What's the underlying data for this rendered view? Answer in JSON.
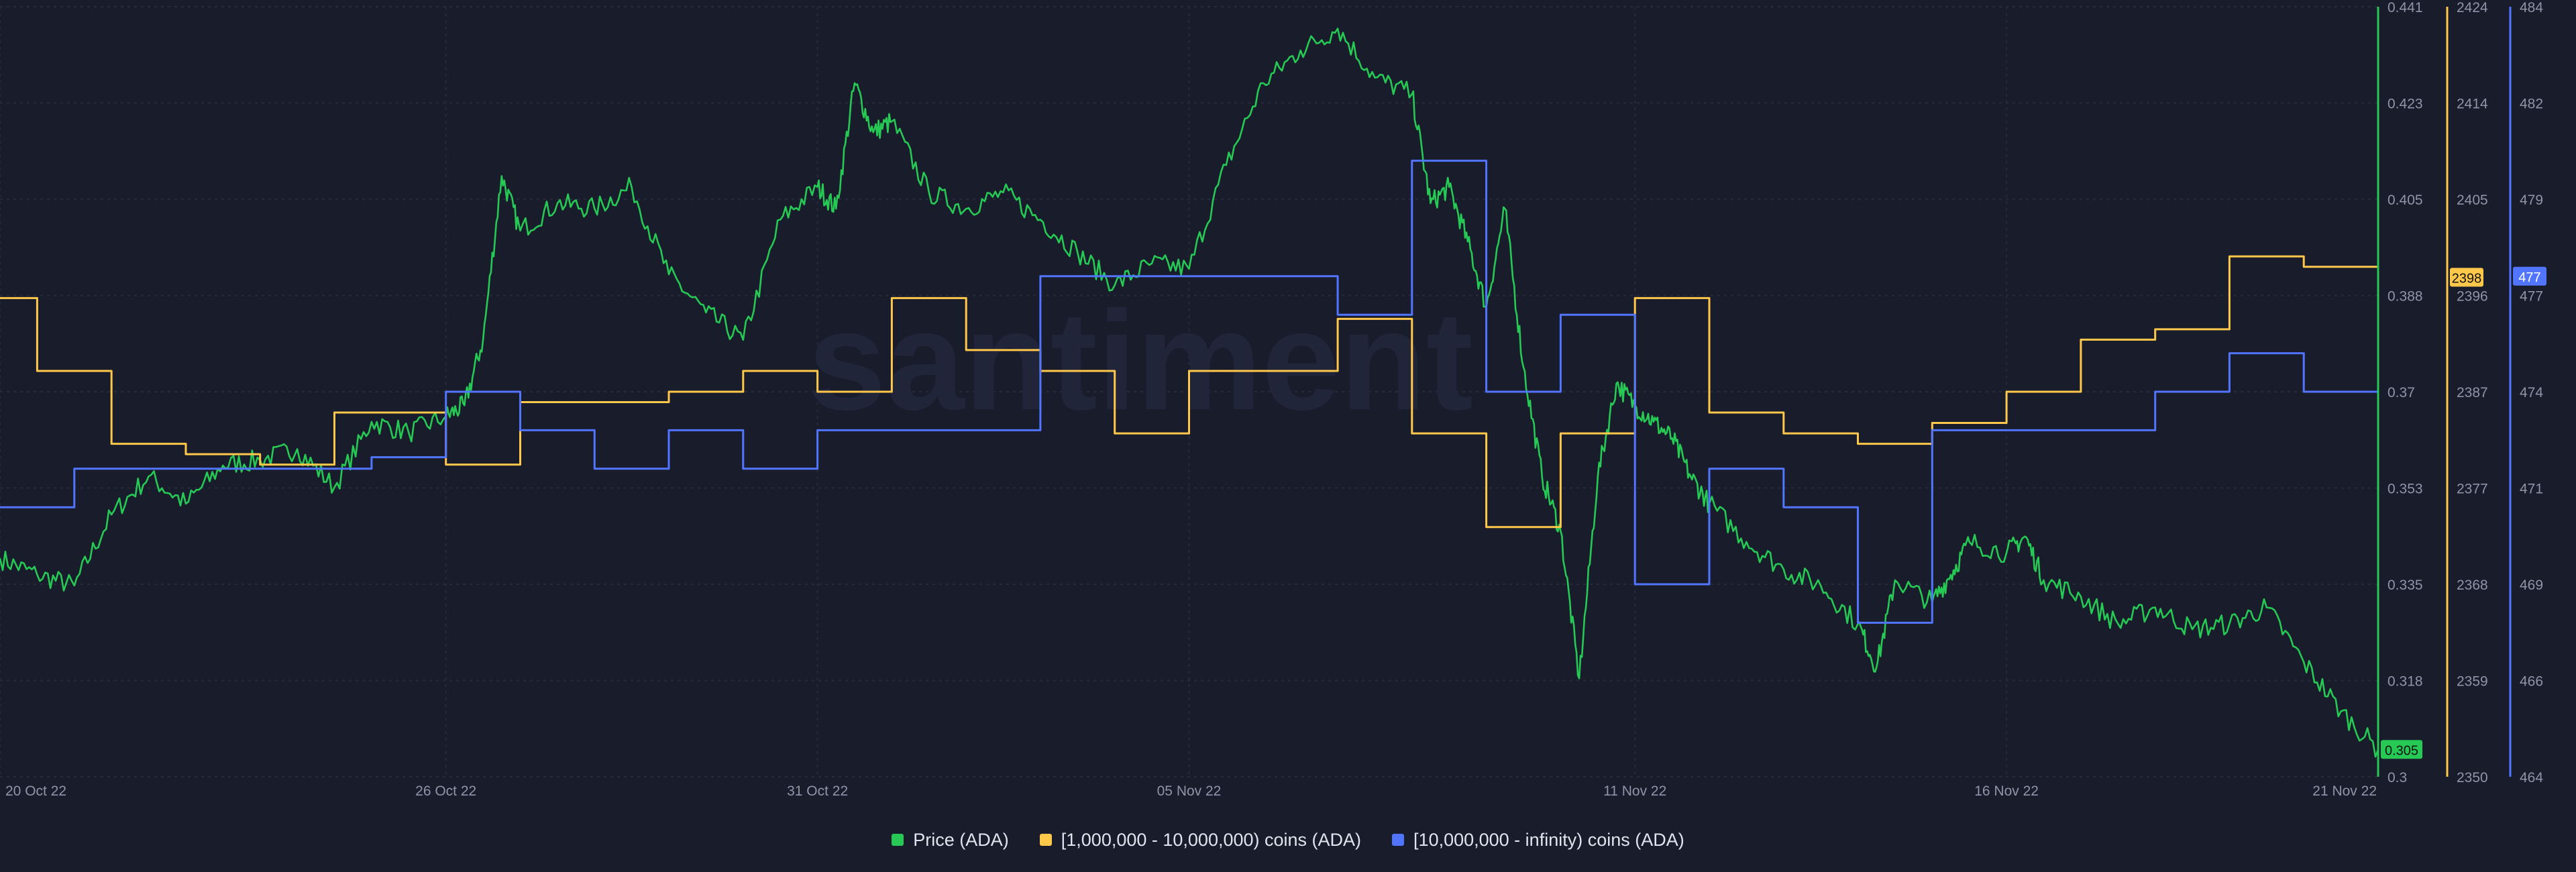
{
  "watermark": "santiment",
  "colors": {
    "background": "#191c2b",
    "grid": "#262a3b",
    "axis_text": "#8f95a8",
    "price": "#26c953",
    "band_1m_10m": "#ffc84a",
    "band_10m_inf": "#5275ff"
  },
  "chart_data": {
    "type": "line",
    "x_ticks": [
      "20 Oct 22",
      "26 Oct 22",
      "31 Oct 22",
      "05 Nov 22",
      "11 Nov 22",
      "16 Nov 22",
      "21 Nov 22"
    ],
    "x_tick_dates": [
      "2022-10-20",
      "2022-10-26",
      "2022-10-31",
      "2022-11-05",
      "2022-11-11",
      "2022-11-16",
      "2022-11-21"
    ],
    "x_range": [
      "2022-10-20",
      "2022-11-21"
    ],
    "grid": true,
    "legend_position": "bottom",
    "axes": [
      {
        "id": "price",
        "ticks": [
          "0.441",
          "0.423",
          "0.405",
          "0.388",
          "0.37",
          "0.353",
          "0.335",
          "0.318",
          "0.3"
        ],
        "range": [
          0.3,
          0.441
        ],
        "color": "#26c953",
        "current_value": "0.305"
      },
      {
        "id": "band_1m_10m",
        "ticks": [
          "2424",
          "2414",
          "2405",
          "2396",
          "2387",
          "2377",
          "2368",
          "2359",
          "2350"
        ],
        "range": [
          2350,
          2424
        ],
        "color": "#ffc84a",
        "current_value": "2398"
      },
      {
        "id": "band_10m_inf",
        "ticks": [
          "484",
          "482",
          "479",
          "477",
          "474",
          "471",
          "469",
          "466",
          "464"
        ],
        "range": [
          464,
          484
        ],
        "color": "#5275ff",
        "current_value": "477"
      }
    ],
    "series": [
      {
        "id": "price",
        "name": "Price (ADA)",
        "axis": "price",
        "style": "noisy",
        "points": [
          [
            "2022-10-20",
            0.34
          ],
          [
            "2022-10-20T12",
            0.337
          ],
          [
            "2022-10-21",
            0.335
          ],
          [
            "2022-10-21T12",
            0.348
          ],
          [
            "2022-10-22",
            0.355
          ],
          [
            "2022-10-22T12",
            0.35
          ],
          [
            "2022-10-23",
            0.357
          ],
          [
            "2022-10-23T12",
            0.358
          ],
          [
            "2022-10-24",
            0.36
          ],
          [
            "2022-10-24T12",
            0.353
          ],
          [
            "2022-10-25",
            0.365
          ],
          [
            "2022-10-25T12",
            0.363
          ],
          [
            "2022-10-26",
            0.366
          ],
          [
            "2022-10-26T06",
            0.368
          ],
          [
            "2022-10-26T12",
            0.38
          ],
          [
            "2022-10-26T18",
            0.41
          ],
          [
            "2022-10-27",
            0.4
          ],
          [
            "2022-10-27T12",
            0.405
          ],
          [
            "2022-10-28",
            0.404
          ],
          [
            "2022-10-28T12",
            0.408
          ],
          [
            "2022-10-29",
            0.392
          ],
          [
            "2022-10-29T12",
            0.385
          ],
          [
            "2022-10-30",
            0.38
          ],
          [
            "2022-10-30T12",
            0.402
          ],
          [
            "2022-10-31",
            0.408
          ],
          [
            "2022-10-31T06",
            0.404
          ],
          [
            "2022-10-31T12",
            0.427
          ],
          [
            "2022-10-31T18",
            0.418
          ],
          [
            "2022-11-01",
            0.42
          ],
          [
            "2022-11-01T12",
            0.407
          ],
          [
            "2022-11-02",
            0.404
          ],
          [
            "2022-11-02T12",
            0.407
          ],
          [
            "2022-11-03",
            0.402
          ],
          [
            "2022-11-03T12",
            0.396
          ],
          [
            "2022-11-04",
            0.39
          ],
          [
            "2022-11-04T12",
            0.394
          ],
          [
            "2022-11-05",
            0.393
          ],
          [
            "2022-11-05T12",
            0.412
          ],
          [
            "2022-11-06",
            0.427
          ],
          [
            "2022-11-06T12",
            0.433
          ],
          [
            "2022-11-07",
            0.437
          ],
          [
            "2022-11-07T12",
            0.428
          ],
          [
            "2022-11-08",
            0.425
          ],
          [
            "2022-11-08T06",
            0.405
          ],
          [
            "2022-11-08T12",
            0.408
          ],
          [
            "2022-11-08T18",
            0.398
          ],
          [
            "2022-11-09",
            0.386
          ],
          [
            "2022-11-09T06",
            0.404
          ],
          [
            "2022-11-09T12",
            0.375
          ],
          [
            "2022-11-09T18",
            0.355
          ],
          [
            "2022-11-10",
            0.345
          ],
          [
            "2022-11-10T06",
            0.318
          ],
          [
            "2022-11-10T12",
            0.355
          ],
          [
            "2022-11-10T18",
            0.372
          ],
          [
            "2022-11-11",
            0.368
          ],
          [
            "2022-11-11T06",
            0.365
          ],
          [
            "2022-11-11T12",
            0.362
          ],
          [
            "2022-11-11T18",
            0.355
          ],
          [
            "2022-11-12",
            0.35
          ],
          [
            "2022-11-12T12",
            0.343
          ],
          [
            "2022-11-13",
            0.338
          ],
          [
            "2022-11-13T12",
            0.335
          ],
          [
            "2022-11-14",
            0.328
          ],
          [
            "2022-11-14T06",
            0.32
          ],
          [
            "2022-11-14T12",
            0.336
          ],
          [
            "2022-11-15",
            0.332
          ],
          [
            "2022-11-15T06",
            0.337
          ],
          [
            "2022-11-15T12",
            0.343
          ],
          [
            "2022-11-16",
            0.341
          ],
          [
            "2022-11-16T06",
            0.344
          ],
          [
            "2022-11-16T12",
            0.336
          ],
          [
            "2022-11-17",
            0.333
          ],
          [
            "2022-11-17T12",
            0.328
          ],
          [
            "2022-11-18",
            0.331
          ],
          [
            "2022-11-18T12",
            0.327
          ],
          [
            "2022-11-19",
            0.328
          ],
          [
            "2022-11-19T12",
            0.331
          ],
          [
            "2022-11-20",
            0.321
          ],
          [
            "2022-11-20T12",
            0.312
          ],
          [
            "2022-11-21",
            0.305
          ]
        ]
      },
      {
        "id": "band_1m_10m",
        "name": "[1,000,000 - 10,000,000) coins (ADA)",
        "axis": "band_1m_10m",
        "style": "step",
        "points": [
          [
            "2022-10-20",
            2396
          ],
          [
            "2022-10-20T12",
            2389
          ],
          [
            "2022-10-21T12",
            2382
          ],
          [
            "2022-10-22T12",
            2381
          ],
          [
            "2022-10-23T12",
            2380
          ],
          [
            "2022-10-24T12",
            2385
          ],
          [
            "2022-10-26",
            2380
          ],
          [
            "2022-10-27",
            2386
          ],
          [
            "2022-10-29",
            2387
          ],
          [
            "2022-10-30",
            2389
          ],
          [
            "2022-10-31",
            2387
          ],
          [
            "2022-11-01",
            2396
          ],
          [
            "2022-11-02",
            2391
          ],
          [
            "2022-11-03",
            2389
          ],
          [
            "2022-11-04",
            2383
          ],
          [
            "2022-11-05",
            2389
          ],
          [
            "2022-11-07",
            2394
          ],
          [
            "2022-11-08",
            2383
          ],
          [
            "2022-11-09",
            2374
          ],
          [
            "2022-11-10",
            2383
          ],
          [
            "2022-11-11",
            2396
          ],
          [
            "2022-11-12",
            2385
          ],
          [
            "2022-11-13",
            2383
          ],
          [
            "2022-11-14",
            2382
          ],
          [
            "2022-11-15",
            2384
          ],
          [
            "2022-11-16",
            2387
          ],
          [
            "2022-11-17",
            2392
          ],
          [
            "2022-11-18",
            2393
          ],
          [
            "2022-11-19",
            2400
          ],
          [
            "2022-11-20",
            2399
          ],
          [
            "2022-11-21",
            2398
          ]
        ]
      },
      {
        "id": "band_10m_inf",
        "name": "[10,000,000 - infinity) coins (ADA)",
        "axis": "band_10m_inf",
        "style": "step",
        "points": [
          [
            "2022-10-20",
            471
          ],
          [
            "2022-10-21",
            472
          ],
          [
            "2022-10-22",
            472
          ],
          [
            "2022-10-23",
            472
          ],
          [
            "2022-10-24",
            472
          ],
          [
            "2022-10-25",
            472.3
          ],
          [
            "2022-10-26",
            474
          ],
          [
            "2022-10-27",
            473
          ],
          [
            "2022-10-28",
            472
          ],
          [
            "2022-10-29",
            473
          ],
          [
            "2022-10-30",
            472
          ],
          [
            "2022-10-31",
            473
          ],
          [
            "2022-11-01",
            473
          ],
          [
            "2022-11-02",
            473
          ],
          [
            "2022-11-03",
            477
          ],
          [
            "2022-11-07",
            476
          ],
          [
            "2022-11-08",
            480
          ],
          [
            "2022-11-09",
            474
          ],
          [
            "2022-11-10",
            476
          ],
          [
            "2022-11-11",
            469
          ],
          [
            "2022-11-12",
            472
          ],
          [
            "2022-11-13",
            471
          ],
          [
            "2022-11-14",
            468
          ],
          [
            "2022-11-15",
            473
          ],
          [
            "2022-11-17",
            473
          ],
          [
            "2022-11-18",
            474
          ],
          [
            "2022-11-19",
            475
          ],
          [
            "2022-11-20",
            474
          ],
          [
            "2022-11-21",
            477
          ]
        ]
      }
    ]
  }
}
